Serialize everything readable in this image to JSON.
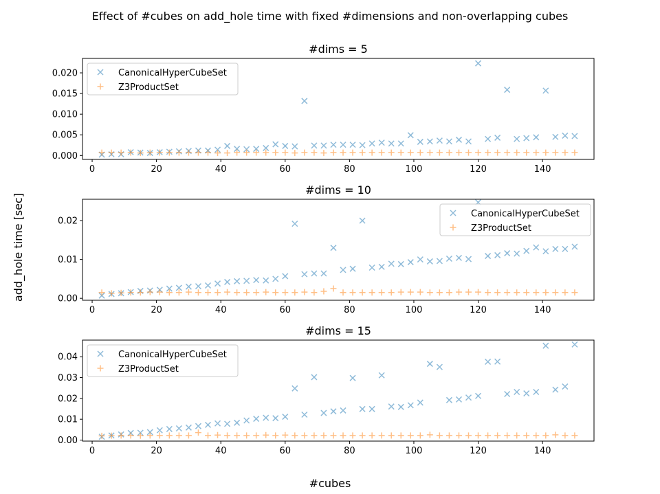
{
  "figure": {
    "title": "Effect of #cubes on add_hole time with fixed #dimensions and non-overlapping cubes",
    "xlabel": "#cubes",
    "ylabel": "add_hole time [sec]"
  },
  "colors": {
    "canonical": "#1f77b4",
    "z3": "#ff7f0e",
    "axis": "#000000",
    "legend_border": "#cccccc"
  },
  "chart_data": [
    {
      "type": "scatter",
      "title": "#dims = 5",
      "xlim": [
        -3,
        156
      ],
      "ylim": [
        -0.00095,
        0.0235
      ],
      "xticks": [
        0,
        20,
        40,
        60,
        80,
        100,
        120,
        140
      ],
      "yticks": [
        0.0,
        0.005,
        0.01,
        0.015,
        0.02
      ],
      "ytick_labels": [
        "0.000",
        "0.005",
        "0.010",
        "0.015",
        "0.020"
      ],
      "legend_position": "upper-left",
      "series": [
        {
          "name": "CanonicalHyperCubeSet",
          "marker": "x",
          "x": [
            3,
            6,
            9,
            12,
            15,
            18,
            21,
            24,
            27,
            30,
            33,
            36,
            39,
            42,
            45,
            48,
            51,
            54,
            57,
            60,
            63,
            66,
            69,
            72,
            75,
            78,
            81,
            84,
            87,
            90,
            93,
            96,
            99,
            102,
            105,
            108,
            111,
            114,
            117,
            120,
            123,
            126,
            129,
            132,
            135,
            138,
            141,
            144,
            147,
            150
          ],
          "y": [
            0.0002,
            0.0003,
            0.0003,
            0.0008,
            0.0007,
            0.0006,
            0.0008,
            0.0009,
            0.001,
            0.0011,
            0.0012,
            0.0012,
            0.0014,
            0.0023,
            0.0016,
            0.0015,
            0.0016,
            0.0018,
            0.0027,
            0.0023,
            0.0022,
            0.0132,
            0.0024,
            0.0024,
            0.0026,
            0.0026,
            0.0026,
            0.0025,
            0.0029,
            0.0031,
            0.0029,
            0.0029,
            0.0049,
            0.0033,
            0.0034,
            0.0036,
            0.0034,
            0.0038,
            0.0034,
            0.0223,
            0.004,
            0.0043,
            0.0159,
            0.004,
            0.0042,
            0.0044,
            0.0157,
            0.0045,
            0.0048,
            0.0047
          ]
        },
        {
          "name": "Z3ProductSet",
          "marker": "+",
          "x": [
            3,
            6,
            9,
            12,
            15,
            18,
            21,
            24,
            27,
            30,
            33,
            36,
            39,
            42,
            45,
            48,
            51,
            54,
            57,
            60,
            63,
            66,
            69,
            72,
            75,
            78,
            81,
            84,
            87,
            90,
            93,
            96,
            99,
            102,
            105,
            108,
            111,
            114,
            117,
            120,
            123,
            126,
            129,
            132,
            135,
            138,
            141,
            144,
            147,
            150
          ],
          "y": [
            0.0007,
            0.0007,
            0.0007,
            0.0007,
            0.0006,
            0.0007,
            0.0007,
            0.0007,
            0.0007,
            0.0007,
            0.0007,
            0.0007,
            0.0006,
            0.0006,
            0.0007,
            0.0007,
            0.0007,
            0.0007,
            0.0007,
            0.0007,
            0.0006,
            0.0007,
            0.0007,
            0.0006,
            0.0007,
            0.0007,
            0.0007,
            0.0007,
            0.0007,
            0.0007,
            0.0007,
            0.0007,
            0.0007,
            0.0007,
            0.0007,
            0.0007,
            0.0007,
            0.0007,
            0.0007,
            0.0007,
            0.0007,
            0.0007,
            0.0007,
            0.0007,
            0.0007,
            0.0007,
            0.0007,
            0.0007,
            0.0007,
            0.0007
          ]
        }
      ]
    },
    {
      "type": "scatter",
      "title": "#dims = 10",
      "xlim": [
        -3,
        156
      ],
      "ylim": [
        -0.0005,
        0.0255
      ],
      "xticks": [
        0,
        20,
        40,
        60,
        80,
        100,
        120,
        140
      ],
      "yticks": [
        0.0,
        0.01,
        0.02
      ],
      "ytick_labels": [
        "0.00",
        "0.01",
        "0.02"
      ],
      "legend_position": "upper-right",
      "series": [
        {
          "name": "CanonicalHyperCubeSet",
          "marker": "x",
          "x": [
            3,
            6,
            9,
            12,
            15,
            18,
            21,
            24,
            27,
            30,
            33,
            36,
            39,
            42,
            45,
            48,
            51,
            54,
            57,
            60,
            63,
            66,
            69,
            72,
            75,
            78,
            81,
            84,
            87,
            90,
            93,
            96,
            99,
            102,
            105,
            108,
            111,
            114,
            117,
            120,
            123,
            126,
            129,
            132,
            135,
            138,
            141,
            144,
            147,
            150
          ],
          "y": [
            0.0007,
            0.0011,
            0.0013,
            0.0016,
            0.0019,
            0.002,
            0.0022,
            0.0025,
            0.0027,
            0.003,
            0.0031,
            0.0033,
            0.0038,
            0.0042,
            0.0044,
            0.0045,
            0.0047,
            0.0046,
            0.005,
            0.0057,
            0.0192,
            0.0062,
            0.0064,
            0.0064,
            0.013,
            0.0073,
            0.0076,
            0.02,
            0.0079,
            0.0081,
            0.0089,
            0.0088,
            0.0093,
            0.01,
            0.0095,
            0.0096,
            0.0102,
            0.0104,
            0.0101,
            0.0247,
            0.0109,
            0.0111,
            0.0116,
            0.0115,
            0.0122,
            0.0131,
            0.0121,
            0.0127,
            0.0127,
            0.0133
          ]
        },
        {
          "name": "Z3ProductSet",
          "marker": "+",
          "x": [
            3,
            6,
            9,
            12,
            15,
            18,
            21,
            24,
            27,
            30,
            33,
            36,
            39,
            42,
            45,
            48,
            51,
            54,
            57,
            60,
            63,
            66,
            69,
            72,
            75,
            78,
            81,
            84,
            87,
            90,
            93,
            96,
            99,
            102,
            105,
            108,
            111,
            114,
            117,
            120,
            123,
            126,
            129,
            132,
            135,
            138,
            141,
            144,
            147,
            150
          ],
          "y": [
            0.0015,
            0.0013,
            0.0014,
            0.0015,
            0.0015,
            0.0016,
            0.0016,
            0.0015,
            0.0015,
            0.0016,
            0.0015,
            0.0015,
            0.0015,
            0.0016,
            0.0015,
            0.0015,
            0.0015,
            0.0016,
            0.0015,
            0.0015,
            0.0015,
            0.0016,
            0.0015,
            0.0018,
            0.0025,
            0.0015,
            0.0015,
            0.0015,
            0.0015,
            0.0015,
            0.0015,
            0.0016,
            0.0016,
            0.0016,
            0.0015,
            0.0015,
            0.0015,
            0.0016,
            0.0016,
            0.0016,
            0.0015,
            0.0015,
            0.0015,
            0.0015,
            0.0015,
            0.0015,
            0.0015,
            0.0015,
            0.0015,
            0.0015
          ]
        }
      ]
    },
    {
      "type": "scatter",
      "title": "#dims = 15",
      "xlim": [
        -3,
        156
      ],
      "ylim": [
        -0.0005,
        0.048
      ],
      "xticks": [
        0,
        20,
        40,
        60,
        80,
        100,
        120,
        140
      ],
      "yticks": [
        0.0,
        0.01,
        0.02,
        0.03,
        0.04
      ],
      "ytick_labels": [
        "0.00",
        "0.01",
        "0.02",
        "0.03",
        "0.04"
      ],
      "legend_position": "upper-left",
      "series": [
        {
          "name": "CanonicalHyperCubeSet",
          "marker": "x",
          "x": [
            3,
            6,
            9,
            12,
            15,
            18,
            21,
            24,
            27,
            30,
            33,
            36,
            39,
            42,
            45,
            48,
            51,
            54,
            57,
            60,
            63,
            66,
            69,
            72,
            75,
            78,
            81,
            84,
            87,
            90,
            93,
            96,
            99,
            102,
            105,
            108,
            111,
            114,
            117,
            120,
            123,
            126,
            129,
            132,
            135,
            138,
            141,
            144,
            147,
            150
          ],
          "y": [
            0.0016,
            0.0022,
            0.0027,
            0.0034,
            0.0035,
            0.0038,
            0.0047,
            0.0053,
            0.0056,
            0.006,
            0.0067,
            0.0073,
            0.008,
            0.0078,
            0.0083,
            0.0094,
            0.0102,
            0.0107,
            0.0105,
            0.0112,
            0.0248,
            0.0122,
            0.0302,
            0.013,
            0.0138,
            0.0142,
            0.0298,
            0.0149,
            0.0149,
            0.0311,
            0.0161,
            0.0159,
            0.0167,
            0.018,
            0.0366,
            0.0351,
            0.0192,
            0.0195,
            0.0204,
            0.0212,
            0.0376,
            0.0377,
            0.0221,
            0.0231,
            0.0224,
            0.0231,
            0.0453,
            0.0242,
            0.0257,
            0.0459
          ]
        },
        {
          "name": "Z3ProductSet",
          "marker": "+",
          "x": [
            3,
            6,
            9,
            12,
            15,
            18,
            21,
            24,
            27,
            30,
            33,
            36,
            39,
            42,
            45,
            48,
            51,
            54,
            57,
            60,
            63,
            66,
            69,
            72,
            75,
            78,
            81,
            84,
            87,
            90,
            93,
            96,
            99,
            102,
            105,
            108,
            111,
            114,
            117,
            120,
            123,
            126,
            129,
            132,
            135,
            138,
            141,
            144,
            147,
            150
          ],
          "y": [
            0.002,
            0.0021,
            0.0022,
            0.0022,
            0.0021,
            0.0022,
            0.0022,
            0.0022,
            0.0022,
            0.0022,
            0.0036,
            0.0022,
            0.0024,
            0.0022,
            0.0022,
            0.0022,
            0.0022,
            0.0024,
            0.0022,
            0.0024,
            0.0022,
            0.0022,
            0.0022,
            0.0022,
            0.0022,
            0.0022,
            0.0022,
            0.0022,
            0.0022,
            0.0022,
            0.0022,
            0.0022,
            0.0022,
            0.0022,
            0.0025,
            0.0022,
            0.0022,
            0.0022,
            0.0022,
            0.0022,
            0.0022,
            0.0022,
            0.0022,
            0.0022,
            0.0022,
            0.0022,
            0.0022,
            0.0025,
            0.0022,
            0.0022
          ]
        }
      ]
    }
  ]
}
